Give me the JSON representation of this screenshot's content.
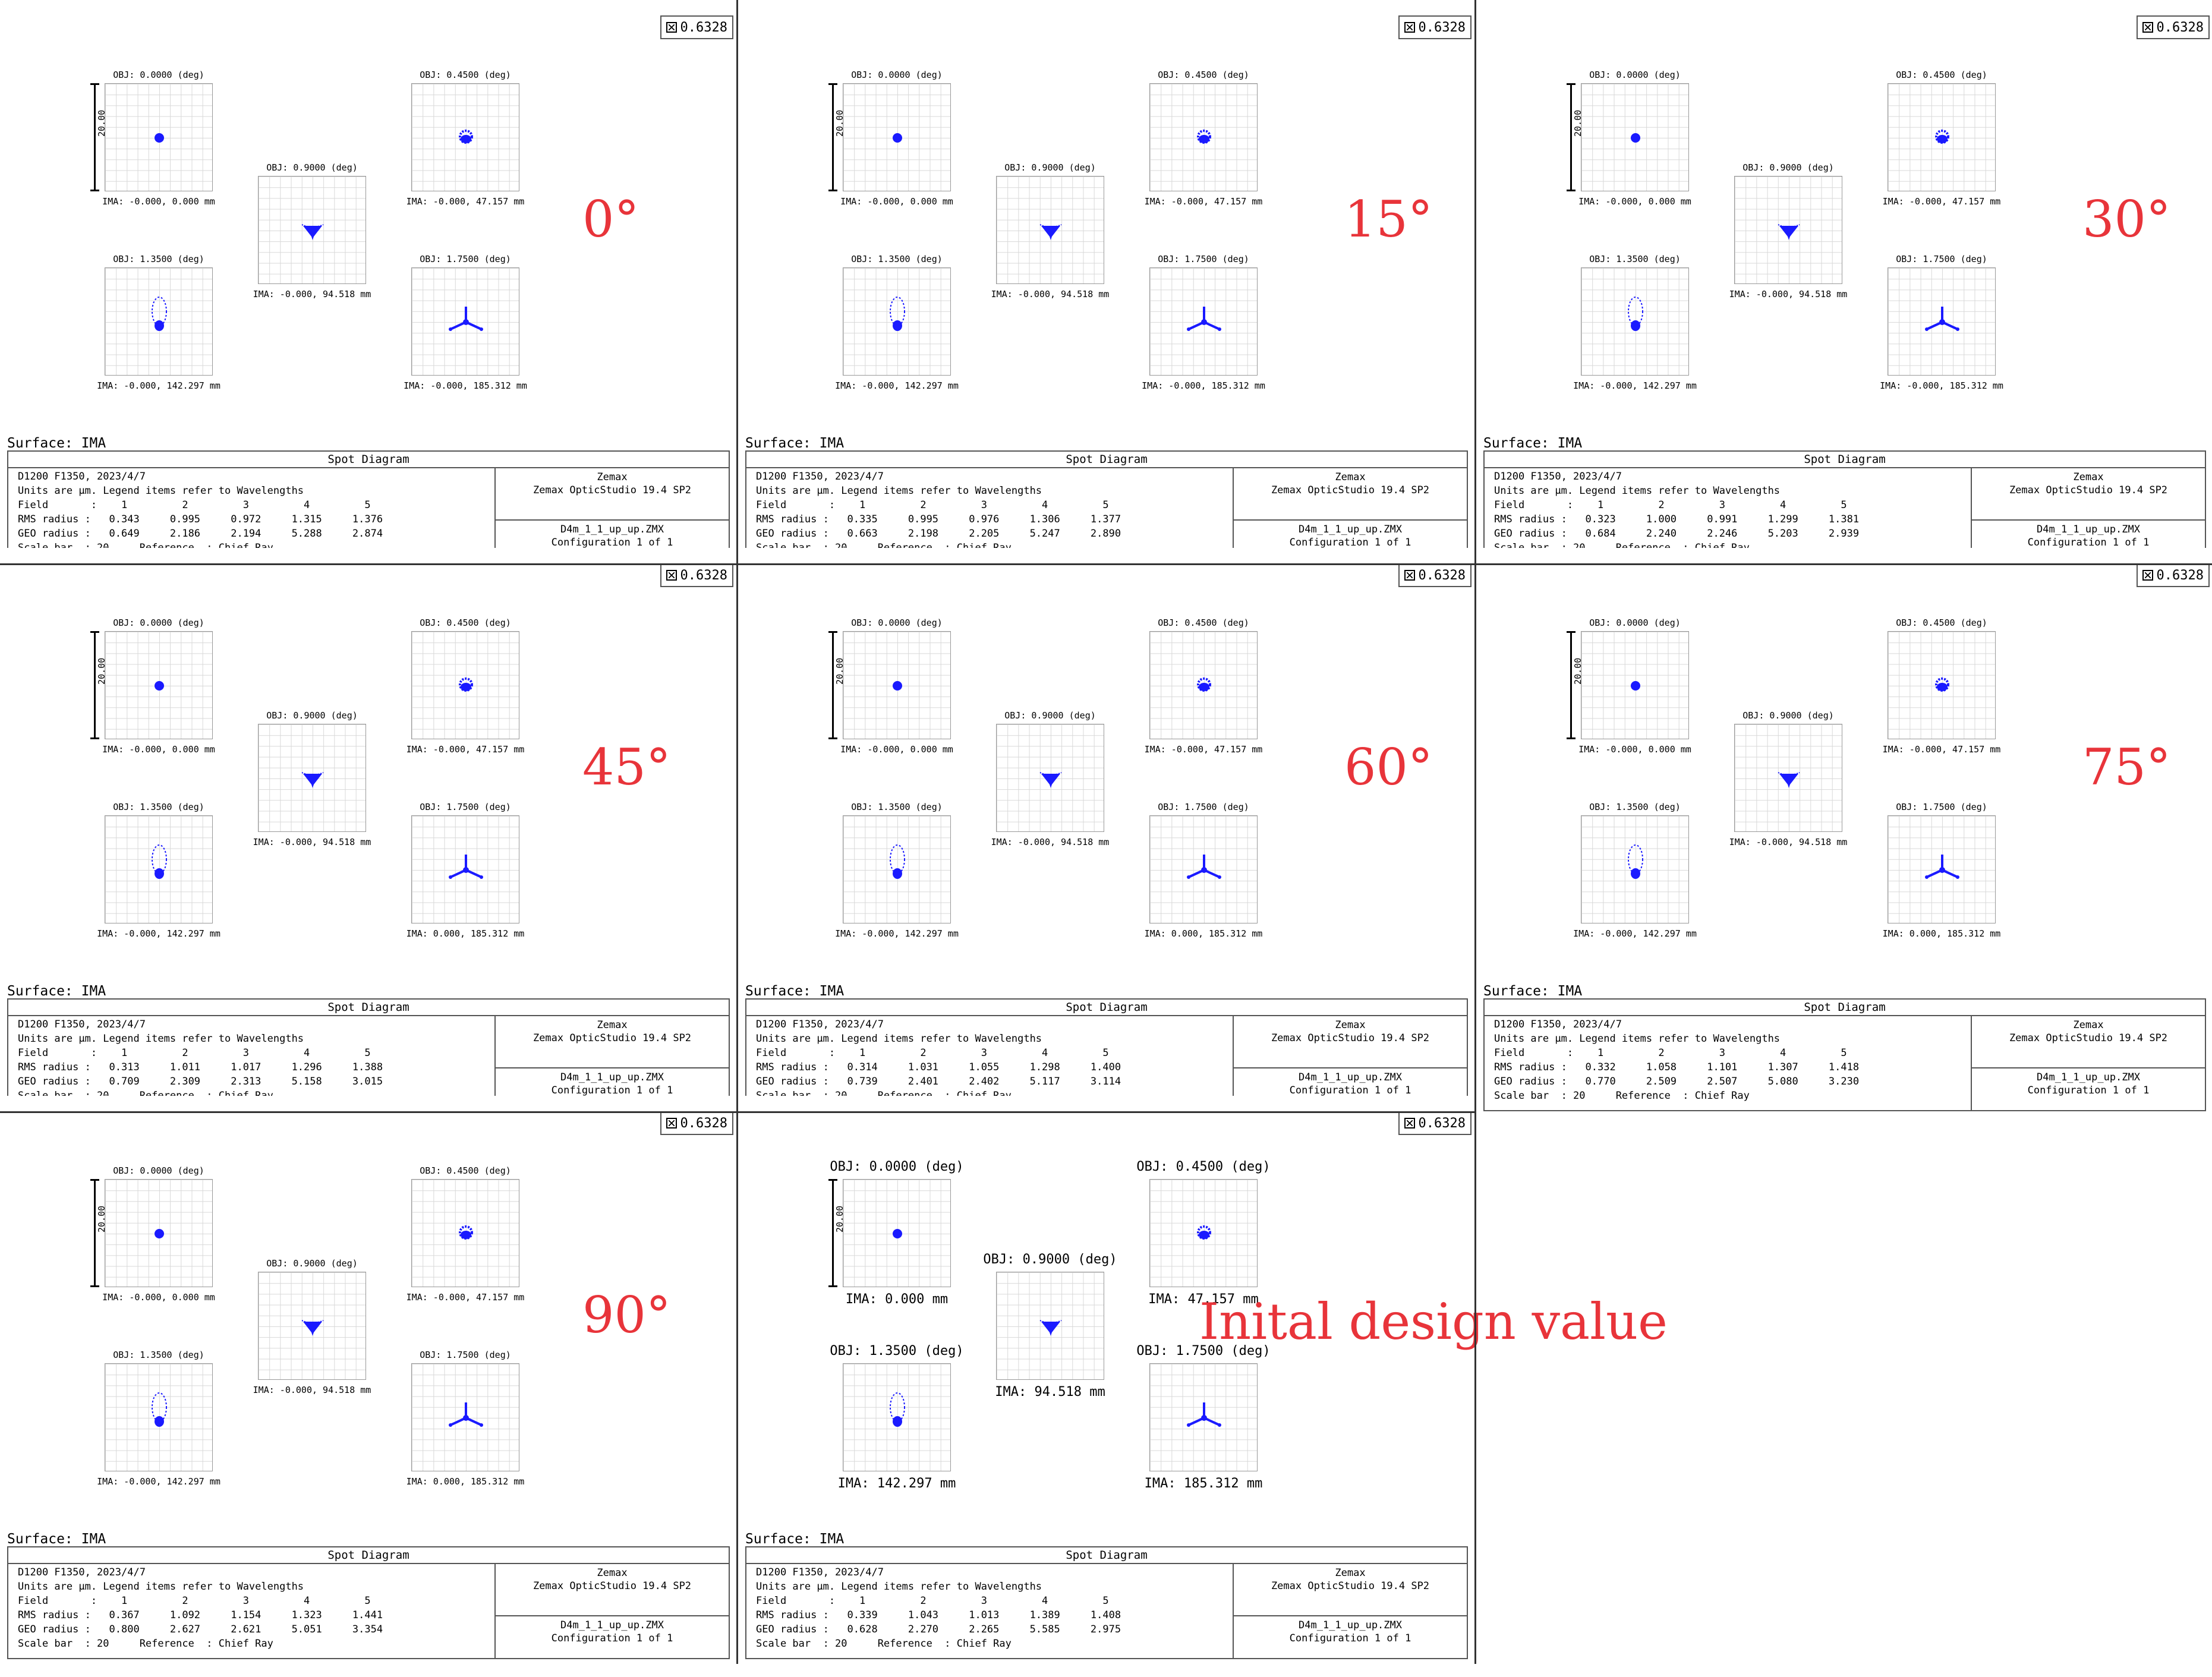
{
  "legend": {
    "value": "0.6328"
  },
  "scale_bar": {
    "label": "20.00"
  },
  "surface": "Surface: IMA",
  "spot_diagram_title": "Spot Diagram",
  "info": {
    "line1": "D1200 F1350, 2023/4/7",
    "line2": "Units are µm. Legend items refer to Wavelengths",
    "field_label": "Field       :",
    "rms_label": "RMS radius :",
    "geo_label": "GEO radius :",
    "scale_bar_text": "Scale bar  : 20     Reference  : Chief Ray",
    "fields": [
      "1",
      "2",
      "3",
      "4",
      "5"
    ],
    "company": "Zemax",
    "product": "Zemax OpticStudio 19.4 SP2",
    "file": "D4m_1_1_up_up.ZMX",
    "config": "Configuration 1 of 1"
  },
  "fields": [
    {
      "obj": "OBJ: 0.0000 (deg)",
      "ima": "IMA: -0.000, 0.000 mm",
      "ima_short": "IMA: 0.000 mm"
    },
    {
      "obj": "OBJ: 0.4500 (deg)",
      "ima": "IMA: -0.000, 47.157 mm",
      "ima_short": "IMA: 47.157 mm"
    },
    {
      "obj": "OBJ: 0.9000 (deg)",
      "ima": "IMA: -0.000, 94.518 mm",
      "ima_short": "IMA: 94.518 mm"
    },
    {
      "obj": "OBJ: 1.3500 (deg)",
      "ima": "IMA: -0.000, 142.297 mm",
      "ima_short": "IMA: 142.297 mm"
    },
    {
      "obj": "OBJ: 1.7500 (deg)",
      "ima": "IMA: -0.000, 185.312 mm",
      "ima_short": "IMA: 185.312 mm"
    }
  ],
  "panels": [
    {
      "angle": "0°",
      "rms": [
        "0.343",
        "0.995",
        "0.972",
        "1.315",
        "1.376"
      ],
      "geo": [
        "0.649",
        "2.186",
        "2.194",
        "5.288",
        "2.874"
      ],
      "ima5": "IMA: -0.000, 185.312 mm"
    },
    {
      "angle": "15°",
      "rms": [
        "0.335",
        "0.995",
        "0.976",
        "1.306",
        "1.377"
      ],
      "geo": [
        "0.663",
        "2.198",
        "2.205",
        "5.247",
        "2.890"
      ],
      "ima5": "IMA: -0.000, 185.312 mm"
    },
    {
      "angle": "30°",
      "rms": [
        "0.323",
        "1.000",
        "0.991",
        "1.299",
        "1.381"
      ],
      "geo": [
        "0.684",
        "2.240",
        "2.246",
        "5.203",
        "2.939"
      ],
      "ima5": "IMA: -0.000, 185.312 mm"
    },
    {
      "angle": "45°",
      "rms": [
        "0.313",
        "1.011",
        "1.017",
        "1.296",
        "1.388"
      ],
      "geo": [
        "0.709",
        "2.309",
        "2.313",
        "5.158",
        "3.015"
      ],
      "ima5": "IMA: 0.000, 185.312 mm"
    },
    {
      "angle": "60°",
      "rms": [
        "0.314",
        "1.031",
        "1.055",
        "1.298",
        "1.400"
      ],
      "geo": [
        "0.739",
        "2.401",
        "2.402",
        "5.117",
        "3.114"
      ],
      "ima5": "IMA: 0.000, 185.312 mm"
    },
    {
      "angle": "75°",
      "rms": [
        "0.332",
        "1.058",
        "1.101",
        "1.307",
        "1.418"
      ],
      "geo": [
        "0.770",
        "2.509",
        "2.507",
        "5.080",
        "3.230"
      ],
      "ima5": "IMA: 0.000, 185.312 mm"
    },
    {
      "angle": "90°",
      "rms": [
        "0.367",
        "1.092",
        "1.154",
        "1.323",
        "1.441"
      ],
      "geo": [
        "0.800",
        "2.627",
        "2.621",
        "5.051",
        "3.354"
      ],
      "ima5": "IMA: 0.000, 185.312 mm"
    },
    {
      "angle": "Inital design value",
      "rms": [
        "0.339",
        "1.043",
        "1.013",
        "1.389",
        "1.408"
      ],
      "geo": [
        "0.628",
        "2.270",
        "2.265",
        "5.585",
        "2.975"
      ],
      "ima5": "IMA: 185.312 mm"
    }
  ],
  "colors": {
    "spot": "#1a1aff",
    "annotation": "#e8343a"
  }
}
